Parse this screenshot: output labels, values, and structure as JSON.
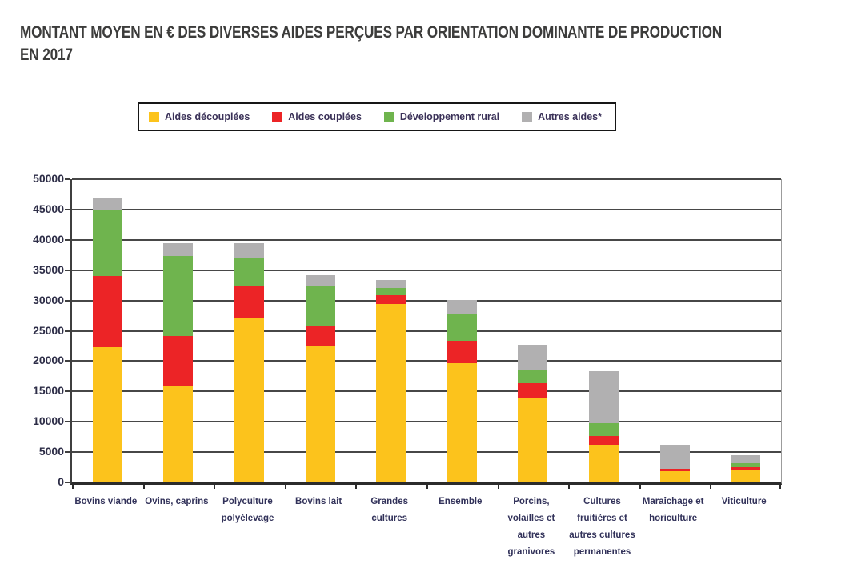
{
  "title": {
    "line1": "MONTANT MOYEN EN € DES DIVERSES AIDES PERÇUES PAR ORIENTATION DOMINANTE DE PRODUCTION",
    "line2": "EN 2017"
  },
  "colors": {
    "aides_decouplees": "#fcc31c",
    "aides_couplees": "#ec2426",
    "developpement_rural": "#6fb44e",
    "autres_aides": "#b1b0b1",
    "axis": "#3f3f3f",
    "label_text": "#32325a",
    "title_text": "#3c3c3b"
  },
  "chart_data": {
    "type": "bar",
    "subtype": "stacked-vertical",
    "title": "MONTANT MOYEN EN € DES DIVERSES AIDES PERÇUES PAR ORIENTATION DOMINANTE DE PRODUCTION EN 2017",
    "xlabel": "",
    "ylabel": "",
    "ylim": [
      0,
      50000
    ],
    "ytick_step": 5000,
    "grid": true,
    "legend_position": "top",
    "categories": [
      "Bovins viande",
      "Ovins, caprins",
      "Polyculture polyélevage",
      "Bovins lait",
      "Grandes cultures",
      "Ensemble",
      "Porcins, volailles et autres granivores",
      "Cultures fruitières et autres cultures permanentes",
      "Maraîchage et horiculture",
      "Viticulture"
    ],
    "category_label_lines": [
      [
        "Bovins viande"
      ],
      [
        "Ovins, caprins"
      ],
      [
        "Polyculture",
        "polyélevage"
      ],
      [
        "Bovins lait"
      ],
      [
        "Grandes",
        "cultures"
      ],
      [
        "Ensemble"
      ],
      [
        "Porcins,",
        "volailles et",
        "autres",
        "granivores"
      ],
      [
        "Cultures",
        "fruitières et",
        "autres cultures",
        "permanentes"
      ],
      [
        "Maraîchage et",
        "horiculture"
      ],
      [
        "Viticulture"
      ]
    ],
    "series": [
      {
        "name": "Aides découplées",
        "color": "#fcc31c",
        "values": [
          22300,
          16000,
          27000,
          22400,
          29400,
          19600,
          14000,
          6200,
          1900,
          2100
        ]
      },
      {
        "name": "Aides couplées",
        "color": "#ec2426",
        "values": [
          11700,
          8200,
          5300,
          3300,
          1500,
          3700,
          2400,
          1400,
          400,
          400
        ]
      },
      {
        "name": "Développement rural",
        "color": "#6fb44e",
        "values": [
          11000,
          13100,
          4600,
          6600,
          1100,
          4400,
          2100,
          2200,
          0,
          700
        ]
      },
      {
        "name": "Autres aides*",
        "color": "#b1b0b1",
        "values": [
          1900,
          2100,
          2500,
          1900,
          1400,
          2400,
          4200,
          8500,
          3900,
          1300
        ]
      }
    ]
  }
}
